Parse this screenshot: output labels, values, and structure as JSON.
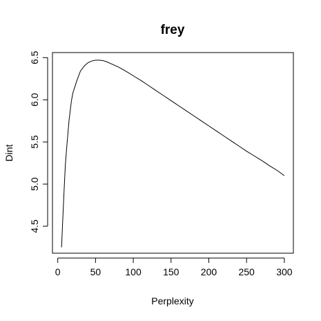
{
  "chart_data": {
    "type": "line",
    "title": "frey",
    "xlabel": "Perplexity",
    "ylabel": "Dint",
    "xlim": [
      -7,
      312
    ],
    "ylim": [
      4.18,
      6.56
    ],
    "xticks": [
      0,
      50,
      100,
      150,
      200,
      250,
      300
    ],
    "xtick_labels": [
      "0",
      "50",
      "100",
      "150",
      "200",
      "250",
      "300"
    ],
    "yticks": [
      4.5,
      5.0,
      5.5,
      6.0,
      6.5
    ],
    "ytick_labels": [
      "4.5",
      "5.0",
      "5.5",
      "6.0",
      "6.5"
    ],
    "grid": false,
    "series": [
      {
        "color": "#000000",
        "x": [
          5,
          8,
          10,
          12,
          15,
          18,
          20,
          25,
          30,
          35,
          40,
          45,
          50,
          55,
          60,
          65,
          70,
          80,
          90,
          100,
          110,
          120,
          130,
          140,
          150,
          160,
          170,
          180,
          190,
          200,
          210,
          220,
          230,
          240,
          250,
          260,
          270,
          280,
          290,
          300
        ],
        "y": [
          4.25,
          4.85,
          5.22,
          5.45,
          5.76,
          5.98,
          6.08,
          6.22,
          6.34,
          6.4,
          6.44,
          6.46,
          6.47,
          6.47,
          6.465,
          6.45,
          6.43,
          6.39,
          6.34,
          6.285,
          6.23,
          6.17,
          6.11,
          6.05,
          5.99,
          5.93,
          5.87,
          5.81,
          5.75,
          5.69,
          5.63,
          5.57,
          5.51,
          5.45,
          5.39,
          5.335,
          5.28,
          5.22,
          5.165,
          5.1
        ]
      }
    ]
  }
}
